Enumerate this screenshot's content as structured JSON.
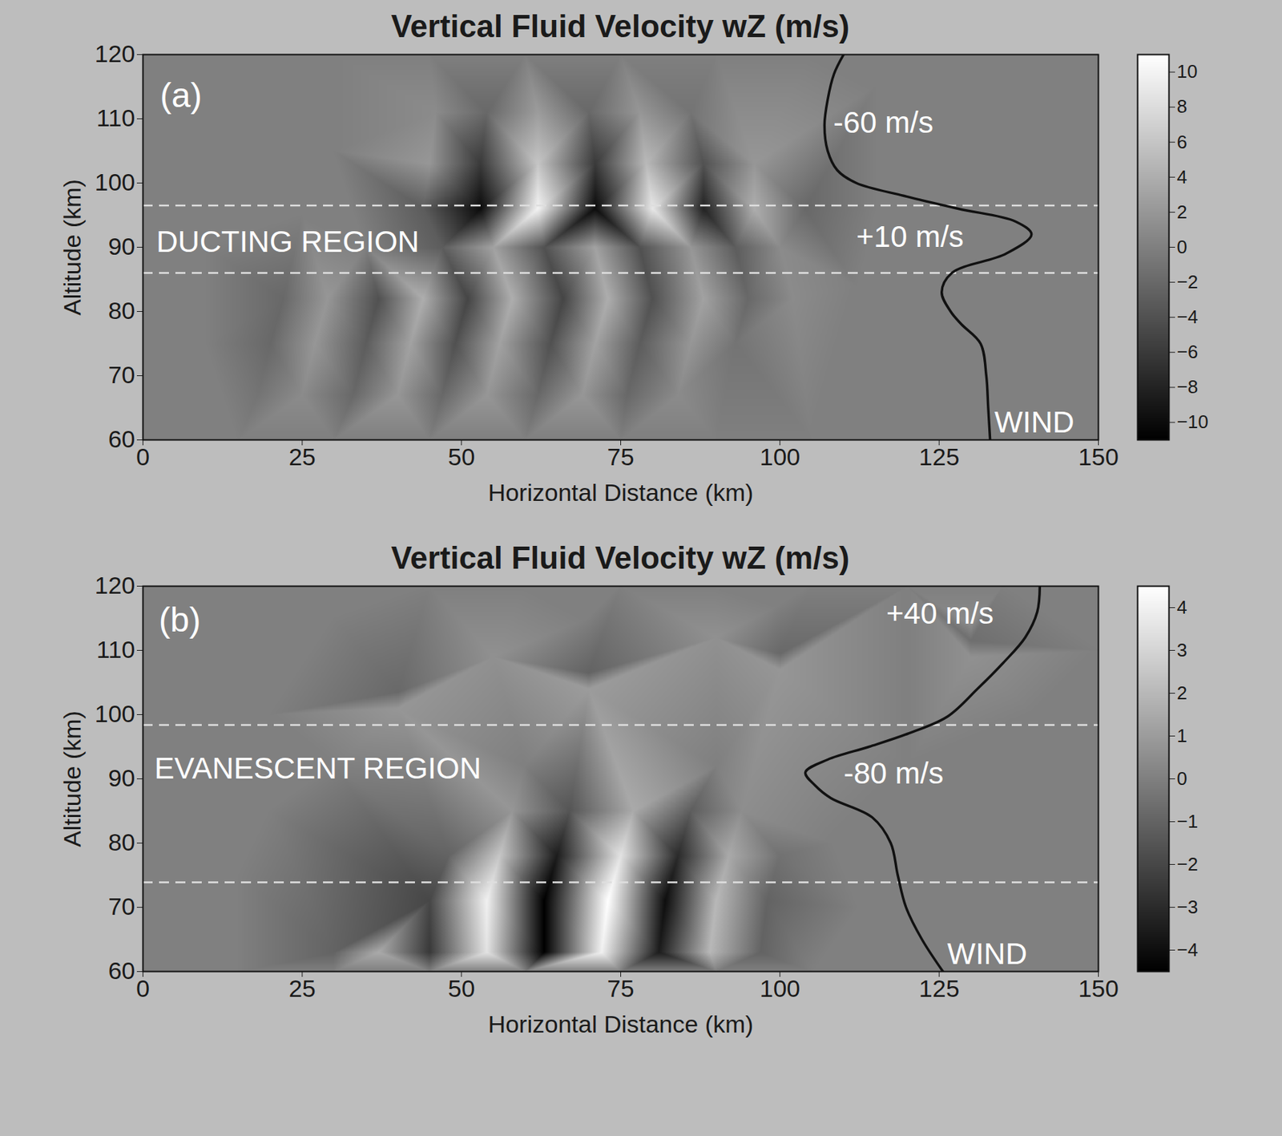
{
  "chart_data": [
    {
      "type": "heatmap",
      "title": "Vertical Fluid Velocity wZ (m/s)",
      "x_label": "Horizontal Distance (km)",
      "y_label": "Altitude (km)",
      "xlim": [
        0,
        150
      ],
      "xticks": [
        0,
        25,
        50,
        75,
        100,
        125,
        150
      ],
      "ylim": [
        60,
        120
      ],
      "yticks": [
        60,
        70,
        80,
        90,
        100,
        110,
        120
      ],
      "colorbar": {
        "range": [
          -11,
          11
        ],
        "ticks": [
          -10,
          -8,
          -6,
          -4,
          -2,
          0,
          2,
          4,
          6,
          8,
          10
        ]
      },
      "cells": [
        [
          0,
          60,
          0
        ],
        [
          15,
          60,
          0
        ],
        [
          30,
          60,
          0
        ],
        [
          45,
          60,
          0
        ],
        [
          60,
          60,
          0
        ],
        [
          75,
          60,
          0
        ],
        [
          90,
          60,
          0
        ],
        [
          105,
          60,
          0
        ],
        [
          120,
          60,
          0
        ],
        [
          135,
          60,
          0
        ],
        [
          150,
          60,
          0
        ],
        [
          0,
          120,
          0
        ],
        [
          15,
          120,
          0
        ],
        [
          30,
          120,
          0
        ],
        [
          45,
          120,
          0
        ],
        [
          60,
          120,
          0
        ],
        [
          75,
          120,
          0
        ],
        [
          90,
          120,
          0
        ],
        [
          105,
          120,
          0
        ],
        [
          120,
          120,
          0
        ],
        [
          135,
          120,
          0
        ],
        [
          150,
          120,
          0
        ],
        [
          0,
          70,
          0
        ],
        [
          0,
          80,
          0
        ],
        [
          0,
          90,
          0
        ],
        [
          0,
          100,
          0
        ],
        [
          0,
          110,
          0
        ],
        [
          150,
          70,
          0
        ],
        [
          150,
          80,
          0
        ],
        [
          150,
          90,
          0
        ],
        [
          150,
          100,
          0
        ],
        [
          150,
          110,
          0
        ],
        [
          10,
          90,
          0
        ],
        [
          10,
          75,
          0
        ],
        [
          10,
          105,
          0
        ],
        [
          125,
          75,
          0
        ],
        [
          125,
          90,
          0
        ],
        [
          125,
          105,
          0
        ],
        [
          115,
          115,
          0
        ],
        [
          30,
          105,
          0
        ],
        [
          115,
          96,
          0
        ],
        [
          112,
          84,
          0
        ],
        [
          25,
          95,
          0
        ],
        [
          35,
          90,
          0
        ],
        [
          44,
          96,
          -3
        ],
        [
          53,
          96,
          -10
        ],
        [
          62,
          96,
          10
        ],
        [
          71,
          96,
          -10
        ],
        [
          80,
          96,
          9
        ],
        [
          88,
          96,
          -8
        ],
        [
          96,
          96,
          4
        ],
        [
          104,
          96,
          -2
        ],
        [
          45,
          103,
          2
        ],
        [
          53,
          103,
          -6
        ],
        [
          62,
          103,
          6
        ],
        [
          71,
          103,
          -6
        ],
        [
          79,
          103,
          5
        ],
        [
          88,
          103,
          -4
        ],
        [
          96,
          103,
          2
        ],
        [
          46,
          111,
          1
        ],
        [
          54,
          111,
          -2
        ],
        [
          62,
          111,
          2.5
        ],
        [
          70,
          111,
          -2
        ],
        [
          78,
          111,
          2
        ],
        [
          86,
          111,
          -1
        ],
        [
          47,
          90,
          -3
        ],
        [
          55,
          90,
          3
        ],
        [
          63,
          90,
          -4
        ],
        [
          71,
          90,
          3
        ],
        [
          78,
          90,
          -4
        ],
        [
          86,
          90,
          2
        ],
        [
          93,
          90,
          -3
        ],
        [
          100,
          90,
          1
        ],
        [
          22,
          82,
          -2
        ],
        [
          29,
          82,
          2
        ],
        [
          37,
          82,
          -4
        ],
        [
          44,
          82,
          4
        ],
        [
          51,
          82,
          -5
        ],
        [
          58,
          82,
          4
        ],
        [
          66,
          82,
          -5
        ],
        [
          73,
          82,
          4
        ],
        [
          80,
          82,
          -4
        ],
        [
          88,
          82,
          3
        ],
        [
          95,
          82,
          -2
        ],
        [
          102,
          82,
          1
        ],
        [
          20,
          75,
          -2
        ],
        [
          27,
          75,
          2
        ],
        [
          35,
          75,
          -3
        ],
        [
          42,
          75,
          3
        ],
        [
          49,
          75,
          -4
        ],
        [
          56,
          75,
          3
        ],
        [
          64,
          75,
          -4
        ],
        [
          71,
          75,
          3
        ],
        [
          78,
          75,
          -3
        ],
        [
          86,
          75,
          2
        ],
        [
          93,
          75,
          -1
        ],
        [
          18,
          67,
          -1
        ],
        [
          25,
          67,
          1
        ],
        [
          33,
          67,
          -2
        ],
        [
          40,
          67,
          2
        ],
        [
          47,
          67,
          -2
        ],
        [
          54,
          67,
          2
        ],
        [
          62,
          67,
          -2
        ],
        [
          69,
          67,
          2
        ],
        [
          76,
          67,
          -2
        ],
        [
          84,
          67,
          1
        ]
      ],
      "hlines": [
        96.5,
        86
      ],
      "series": [
        {
          "name": "WIND",
          "type": "line",
          "color": "#111111",
          "x": [
            133,
            132.7,
            132.4,
            131.5,
            128.5,
            126.8,
            125.4,
            127,
            135.5,
            139.5,
            137,
            128,
            119.5,
            112,
            109,
            107.5,
            107,
            107.5,
            108.5,
            110
          ],
          "values": [
            60,
            65,
            70,
            75,
            78,
            80,
            83,
            86,
            89,
            92,
            94,
            96,
            98,
            100,
            102,
            105,
            109,
            113,
            117,
            120
          ]
        }
      ],
      "annotations": [
        {
          "text": "(a)",
          "x": 2.7,
          "y": 113.5
        },
        {
          "text": "DUCTING REGION",
          "x": 2.1,
          "y": 90.8
        },
        {
          "text": "-60 m/s",
          "x": 108.4,
          "y": 109.3
        },
        {
          "text": "+10 m/s",
          "x": 112,
          "y": 91.6
        }
      ]
    },
    {
      "type": "heatmap",
      "title": "Vertical Fluid Velocity wZ (m/s)",
      "x_label": "Horizontal Distance (km)",
      "y_label": "Altitude (km)",
      "xlim": [
        0,
        150
      ],
      "xticks": [
        0,
        25,
        50,
        75,
        100,
        125,
        150
      ],
      "ylim": [
        60,
        120
      ],
      "yticks": [
        60,
        70,
        80,
        90,
        100,
        110,
        120
      ],
      "colorbar": {
        "range": [
          -4.5,
          4.5
        ],
        "ticks": [
          -4,
          -3,
          -2,
          -1,
          0,
          1,
          2,
          3,
          4
        ]
      },
      "cells": [
        [
          0,
          60,
          0
        ],
        [
          15,
          60,
          0
        ],
        [
          30,
          60,
          0
        ],
        [
          45,
          60,
          0
        ],
        [
          60,
          60,
          0
        ],
        [
          75,
          60,
          0
        ],
        [
          90,
          60,
          0
        ],
        [
          105,
          60,
          0
        ],
        [
          120,
          60,
          0
        ],
        [
          135,
          60,
          0
        ],
        [
          150,
          60,
          0
        ],
        [
          0,
          120,
          0
        ],
        [
          15,
          120,
          0
        ],
        [
          30,
          120,
          0
        ],
        [
          45,
          120,
          0
        ],
        [
          60,
          120,
          0
        ],
        [
          75,
          120,
          0
        ],
        [
          90,
          120,
          0
        ],
        [
          105,
          120,
          0
        ],
        [
          120,
          120,
          0
        ],
        [
          135,
          120,
          0
        ],
        [
          150,
          120,
          0
        ],
        [
          0,
          70,
          0
        ],
        [
          0,
          80,
          0
        ],
        [
          0,
          90,
          0
        ],
        [
          0,
          100,
          0
        ],
        [
          0,
          110,
          0
        ],
        [
          150,
          70,
          0
        ],
        [
          150,
          80,
          0
        ],
        [
          150,
          90,
          0
        ],
        [
          150,
          100,
          0
        ],
        [
          150,
          110,
          0
        ],
        [
          30,
          92,
          0
        ],
        [
          60,
          92,
          0
        ],
        [
          90,
          92,
          0
        ],
        [
          120,
          92,
          0
        ],
        [
          15,
          75,
          0
        ],
        [
          112,
          70,
          0
        ],
        [
          108,
          80,
          0
        ],
        [
          20,
          100,
          0
        ],
        [
          30,
          115,
          0
        ],
        [
          70,
          115,
          0
        ],
        [
          100,
          117,
          0
        ],
        [
          20,
          85,
          0
        ],
        [
          130,
          80,
          0
        ],
        [
          140,
          100,
          0
        ],
        [
          30,
          63,
          -1
        ],
        [
          37,
          63,
          1.5
        ],
        [
          45,
          63,
          -2.5
        ],
        [
          54,
          63,
          3.5
        ],
        [
          63,
          63,
          -4.5
        ],
        [
          72,
          63,
          4
        ],
        [
          81,
          63,
          -3.5
        ],
        [
          89,
          63,
          2
        ],
        [
          97,
          63,
          -1
        ],
        [
          45,
          71,
          -2
        ],
        [
          54,
          71,
          4
        ],
        [
          63,
          71,
          -4.5
        ],
        [
          73,
          71,
          4.5
        ],
        [
          82,
          71,
          -4
        ],
        [
          90,
          71,
          2
        ],
        [
          98,
          71,
          -1
        ],
        [
          48,
          78,
          -1
        ],
        [
          56,
          78,
          2.5
        ],
        [
          65,
          78,
          -3.5
        ],
        [
          75,
          78,
          3.5
        ],
        [
          84,
          78,
          -3
        ],
        [
          92,
          78,
          1.5
        ],
        [
          100,
          78,
          -0.5
        ],
        [
          58,
          85,
          0.8
        ],
        [
          67,
          85,
          -1.5
        ],
        [
          77,
          85,
          1.5
        ],
        [
          86,
          85,
          -1.2
        ],
        [
          94,
          85,
          0.5
        ],
        [
          40,
          101,
          0.8
        ],
        [
          70,
          104,
          1
        ],
        [
          100,
          107,
          0.8
        ],
        [
          130,
          109,
          0.6
        ],
        [
          40,
          103.5,
          -0.8
        ],
        [
          70,
          106.5,
          -1
        ],
        [
          100,
          109.5,
          -0.8
        ],
        [
          130,
          111.5,
          -0.6
        ],
        [
          55,
          109,
          0.6
        ],
        [
          90,
          112,
          0.6
        ],
        [
          130,
          114,
          0.4
        ]
      ],
      "hlines": [
        98.4,
        73.9
      ],
      "series": [
        {
          "name": "WIND",
          "type": "line",
          "color": "#111111",
          "x": [
            125.6,
            122.3,
            119.8,
            118.5,
            117.4,
            114.5,
            108,
            105.5,
            104,
            107.5,
            114,
            120,
            126.3,
            131,
            135,
            138.5,
            140.4,
            140.8
          ],
          "values": [
            60,
            65,
            70,
            75,
            80,
            84,
            87,
            89,
            91,
            93,
            95,
            97,
            99.7,
            104,
            108,
            112,
            116,
            120
          ]
        }
      ],
      "annotations": [
        {
          "text": "(b)",
          "x": 2.5,
          "y": 114.6
        },
        {
          "text": "EVANESCENT REGION",
          "x": 1.8,
          "y": 91.6
        },
        {
          "text": "-80 m/s",
          "x": 110,
          "y": 90.8
        },
        {
          "text": "+40 m/s",
          "x": 116.7,
          "y": 115.7
        }
      ]
    }
  ]
}
